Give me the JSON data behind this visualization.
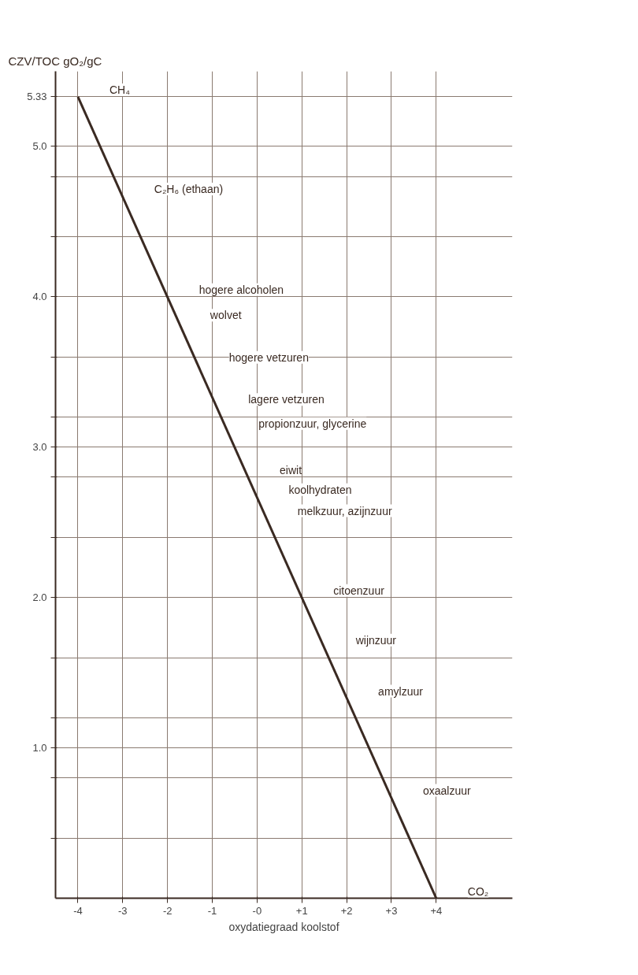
{
  "chart_data": {
    "type": "line",
    "ylabel": "CZV/TOC   gO₂/gC",
    "xlabel": "oxydatiegraad koolstof",
    "x": [
      -4,
      4
    ],
    "series": [
      {
        "color": "#3a2a22",
        "values": [
          5.33,
          0
        ]
      }
    ],
    "xlim": [
      -4.5,
      5.7
    ],
    "ylim": [
      0,
      5.5
    ],
    "xticks": [
      {
        "value": -4,
        "label": "-4"
      },
      {
        "value": -3,
        "label": "-3"
      },
      {
        "value": -2,
        "label": "-2"
      },
      {
        "value": -1,
        "label": "-1"
      },
      {
        "value": 0,
        "label": "-0"
      },
      {
        "value": 1,
        "label": "+1"
      },
      {
        "value": 2,
        "label": "+2"
      },
      {
        "value": 3,
        "label": "+3"
      },
      {
        "value": 4,
        "label": "+4"
      }
    ],
    "yticks": [
      {
        "value": 0.4,
        "label": null
      },
      {
        "value": 0.8,
        "label": null
      },
      {
        "value": 1.0,
        "label": "1.0"
      },
      {
        "value": 1.2,
        "label": null
      },
      {
        "value": 1.6,
        "label": null
      },
      {
        "value": 2.0,
        "label": "2.0"
      },
      {
        "value": 2.4,
        "label": null
      },
      {
        "value": 2.8,
        "label": null
      },
      {
        "value": 3.0,
        "label": "3.0"
      },
      {
        "value": 3.2,
        "label": null
      },
      {
        "value": 3.6,
        "label": null
      },
      {
        "value": 4.0,
        "label": "4.0"
      },
      {
        "value": 4.4,
        "label": null
      },
      {
        "value": 4.8,
        "label": null
      },
      {
        "value": 5.0,
        "label": "5.0"
      },
      {
        "value": 5.33,
        "label": "5.33"
      }
    ],
    "grid": true,
    "annotations": [
      {
        "text": "CH₄",
        "x": -4,
        "y": 5.33
      },
      {
        "text": "C₂H₆ (ethaan)",
        "x": -3,
        "y": 4.67
      },
      {
        "text": "hogere alcoholen",
        "x": -2,
        "y": 4.0
      },
      {
        "text": "wolvet",
        "x": -1.75,
        "y": 3.83
      },
      {
        "text": "hogere vetzuren",
        "x": -1.33,
        "y": 3.55
      },
      {
        "text": "lagere vetzuren",
        "x": -0.9,
        "y": 3.27
      },
      {
        "text": "propionzuur, glycerine",
        "x": -0.67,
        "y": 3.11
      },
      {
        "text": "eiwit",
        "x": -0.2,
        "y": 2.8
      },
      {
        "text": "koolhydraten",
        "x": 0,
        "y": 2.67
      },
      {
        "text": "melkzuur, azijnzuur",
        "x": 0.2,
        "y": 2.53
      },
      {
        "text": "citoenzuur",
        "x": 1,
        "y": 2.0
      },
      {
        "text": "wijnzuur",
        "x": 1.5,
        "y": 1.67
      },
      {
        "text": "amylzuur",
        "x": 2,
        "y": 1.33
      },
      {
        "text": "oxaalzuur",
        "x": 3,
        "y": 0.67
      },
      {
        "text": "CO₂",
        "x": 4,
        "y": 0
      }
    ]
  }
}
